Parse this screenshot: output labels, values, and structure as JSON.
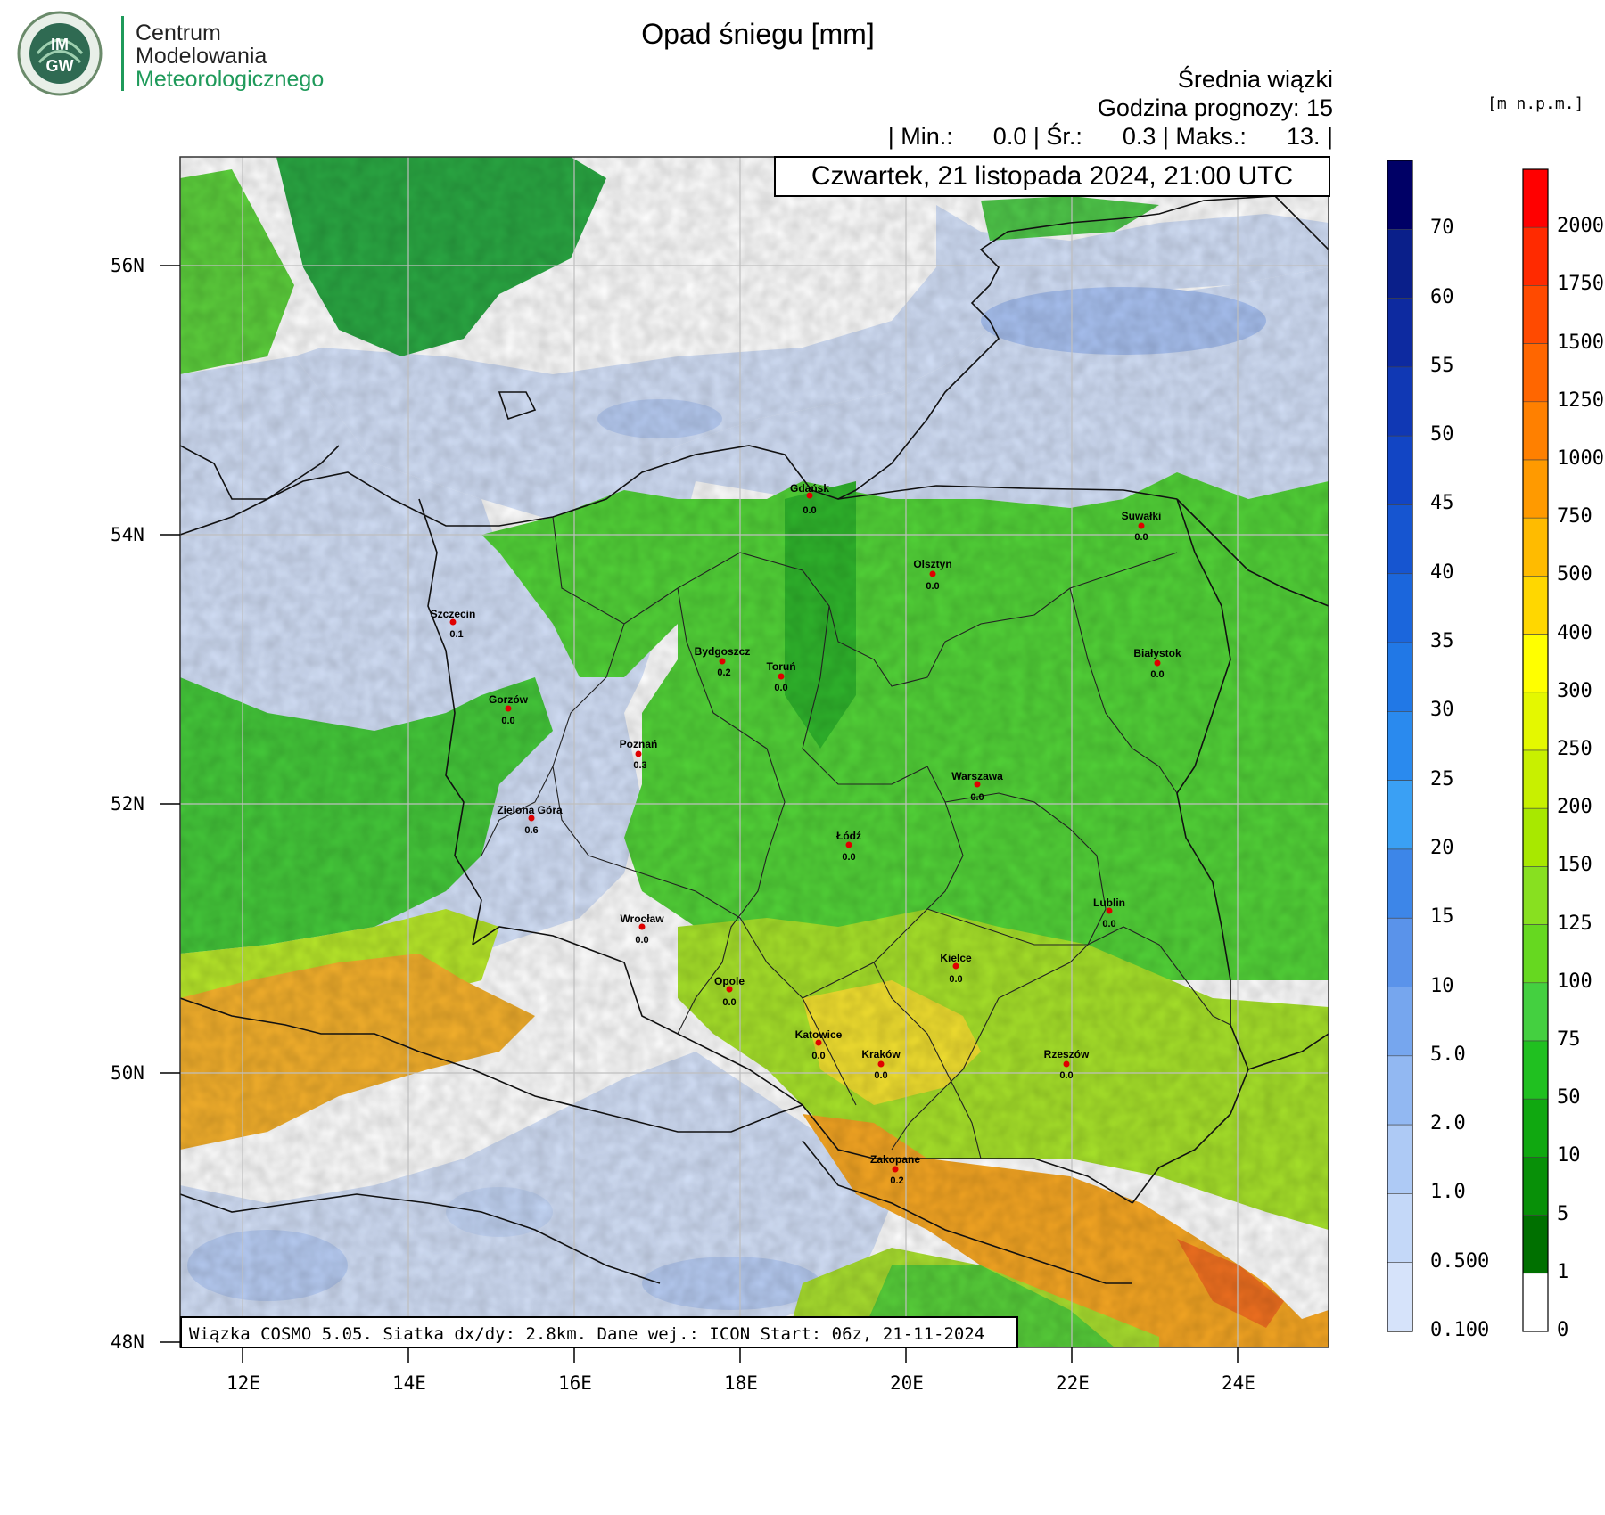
{
  "logo": {
    "badge_text": "IMGW",
    "line1": "Centrum",
    "line2": "Modelowania",
    "line3": "Meteorologicznego"
  },
  "title": "Opad śniegu [mm]",
  "header": {
    "line1": "Średnia wiązki",
    "line2": "Godzina prognozy: 15",
    "line3": "| Min.:      0.0 | Śr.:      0.3 | Maks.:      13. |"
  },
  "date_label": "Czwartek, 21 listopada 2024, 21:00 UTC",
  "footer": "Wiązka COSMO 5.05. Siatka dx/dy: 2.8km. Dane wej.: ICON Start: 06z, 21-11-2024",
  "axes": {
    "lat_labels": [
      "56N",
      "54N",
      "52N",
      "50N",
      "48N"
    ],
    "lon_labels": [
      "12E",
      "14E",
      "16E",
      "18E",
      "20E",
      "22E",
      "24E"
    ]
  },
  "snow_colorbar": {
    "labels": [
      "70",
      "60",
      "55",
      "50",
      "45",
      "40",
      "35",
      "30",
      "25",
      "20",
      "15",
      "10",
      "5.0",
      "2.0",
      "1.0",
      "0.500",
      "0.100"
    ],
    "colors": [
      "#000066",
      "#0a1f8a",
      "#0d2aa0",
      "#1038b4",
      "#1245c4",
      "#1655d0",
      "#1b66dc",
      "#2178e6",
      "#2a8aee",
      "#3aa0f4",
      "#3d86e8",
      "#5a93ea",
      "#76a6ee",
      "#92b8f2",
      "#aecaf5",
      "#c4d8f8",
      "#d6e3fa"
    ]
  },
  "elev_colorbar": {
    "unit": "[m n.p.m.]",
    "labels": [
      "2000",
      "1750",
      "1500",
      "1250",
      "1000",
      "750",
      "500",
      "400",
      "300",
      "250",
      "200",
      "150",
      "125",
      "100",
      "75",
      "50",
      "10",
      "5",
      "1",
      "0"
    ],
    "colors": [
      "#ff0000",
      "#ff2a00",
      "#ff4a00",
      "#ff6600",
      "#ff8000",
      "#ff9a00",
      "#ffbb00",
      "#ffd700",
      "#ffff00",
      "#e4f800",
      "#c8f000",
      "#a8e800",
      "#88e020",
      "#66d820",
      "#44d040",
      "#20c020",
      "#10a810",
      "#089008",
      "#007000",
      "#ffffff"
    ]
  },
  "cities": [
    {
      "name": "Gdańsk",
      "value": "0.0"
    },
    {
      "name": "Suwałki",
      "value": "0.0"
    },
    {
      "name": "Olsztyn",
      "value": "0.0"
    },
    {
      "name": "Szczecin",
      "value": "0.1"
    },
    {
      "name": "Bydgoszcz",
      "value": "0.2"
    },
    {
      "name": "Toruń",
      "value": "0.0"
    },
    {
      "name": "Białystok",
      "value": "0.0"
    },
    {
      "name": "Gorzów",
      "value": "0.0"
    },
    {
      "name": "Poznań",
      "value": "0.3"
    },
    {
      "name": "Warszawa",
      "value": "0.0"
    },
    {
      "name": "Zielona Góra",
      "value": "0.6"
    },
    {
      "name": "Łódź",
      "value": "0.0"
    },
    {
      "name": "Lublin",
      "value": "0.0"
    },
    {
      "name": "Wrocław",
      "value": "0.0"
    },
    {
      "name": "Kielce",
      "value": "0.0"
    },
    {
      "name": "Opole",
      "value": "0.0"
    },
    {
      "name": "Katowice",
      "value": "0.0"
    },
    {
      "name": "Kraków",
      "value": "0.0"
    },
    {
      "name": "Rzeszów",
      "value": "0.0"
    },
    {
      "name": "Zakopane",
      "value": "0.2"
    }
  ]
}
